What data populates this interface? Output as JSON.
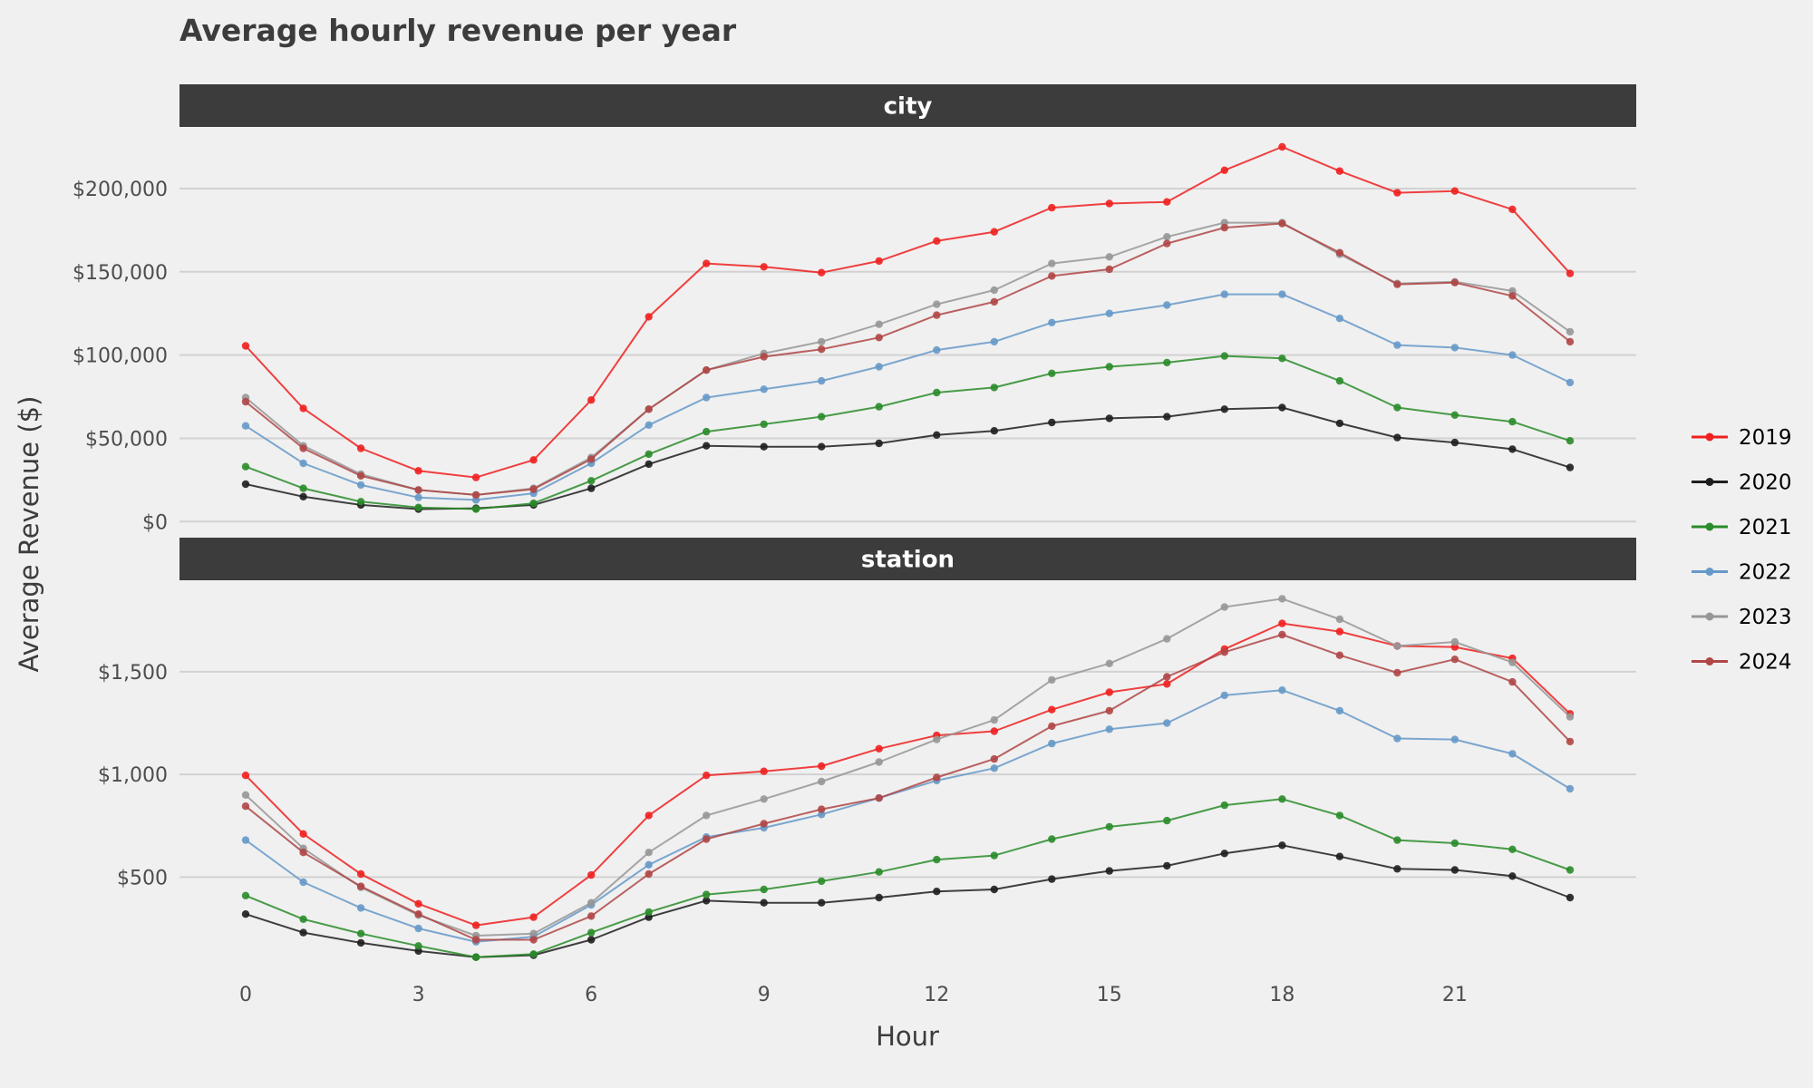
{
  "chart_data": {
    "type": "line",
    "title": "Average hourly revenue per year",
    "xlabel": "Hour",
    "ylabel": "Average Revenue ($)",
    "x": [
      0,
      1,
      2,
      3,
      4,
      5,
      6,
      7,
      8,
      9,
      10,
      11,
      12,
      13,
      14,
      15,
      16,
      17,
      18,
      19,
      20,
      21,
      22,
      23
    ],
    "x_ticks": [
      0,
      3,
      6,
      9,
      12,
      15,
      18,
      21
    ],
    "x_tick_labels": [
      "0",
      "3",
      "6",
      "9",
      "12",
      "15",
      "18",
      "21"
    ],
    "xlim": [
      -1.15,
      24.15
    ],
    "grid": true,
    "legend_position": "right",
    "series_names": [
      "2019",
      "2020",
      "2021",
      "2022",
      "2023",
      "2024"
    ],
    "colors": {
      "2019": "#ef2020",
      "2020": "#1e1e1e",
      "2021": "#2a8c2a",
      "2022": "#6699c8",
      "2023": "#979797",
      "2024": "#b04646"
    },
    "facets": [
      {
        "label": "city",
        "ylim": [
          -8000,
          237000
        ],
        "y_ticks": [
          0,
          50000,
          100000,
          150000,
          200000
        ],
        "y_tick_labels": [
          "$0",
          "$50,000",
          "$100,000",
          "$150,000",
          "$200,000"
        ],
        "series": [
          {
            "name": "2019",
            "values": [
              105500,
              68000,
              44000,
              30500,
              26500,
              37000,
              73000,
              123000,
              155000,
              153000,
              149500,
              156500,
              168500,
              174000,
              188500,
              191000,
              192000,
              211000,
              225000,
              210500,
              197500,
              198500,
              187500,
              149000
            ]
          },
          {
            "name": "2020",
            "values": [
              22500,
              15000,
              10000,
              7500,
              8000,
              10000,
              20000,
              34500,
              45500,
              45000,
              45000,
              47000,
              52000,
              54500,
              59500,
              62000,
              63000,
              67500,
              68500,
              59000,
              50500,
              47500,
              43500,
              32500
            ]
          },
          {
            "name": "2021",
            "values": [
              33000,
              20000,
              12000,
              8500,
              7500,
              11000,
              24500,
              40500,
              54000,
              58500,
              63000,
              69000,
              77500,
              80500,
              89000,
              93000,
              95500,
              99500,
              98000,
              84500,
              68500,
              64000,
              60000,
              48500
            ]
          },
          {
            "name": "2022",
            "values": [
              57500,
              35000,
              22000,
              14500,
              13000,
              17000,
              35000,
              58000,
              74500,
              79500,
              84500,
              93000,
              103000,
              108000,
              119500,
              125000,
              130000,
              136500,
              136500,
              122000,
              106000,
              104500,
              100000,
              83500
            ]
          },
          {
            "name": "2023",
            "values": [
              74500,
              45500,
              28500,
              19000,
              16000,
              20000,
              38500,
              67500,
              91000,
              101000,
              108000,
              118500,
              130500,
              139000,
              155000,
              159000,
              171000,
              179500,
              179500,
              160500,
              143000,
              144000,
              138500,
              114000
            ]
          },
          {
            "name": "2024",
            "values": [
              72000,
              44000,
              27500,
              19000,
              16000,
              19500,
              37500,
              67500,
              91000,
              99000,
              103500,
              110500,
              124000,
              132000,
              147500,
              151500,
              167000,
              176500,
              179000,
              161500,
              142500,
              143500,
              135500,
              108000
            ]
          }
        ]
      },
      {
        "label": "station",
        "ylim": [
          25,
          1945
        ],
        "y_ticks": [
          500,
          1000,
          1500
        ],
        "y_tick_labels": [
          "$500",
          "$1,000",
          "$1,500"
        ],
        "series": [
          {
            "name": "2019",
            "values": [
              995,
              710,
              515,
              370,
              265,
              305,
              510,
              800,
              995,
              1015,
              1040,
              1125,
              1190,
              1210,
              1315,
              1400,
              1440,
              1610,
              1735,
              1695,
              1625,
              1620,
              1565,
              1295
            ]
          },
          {
            "name": "2020",
            "values": [
              320,
              230,
              180,
              140,
              110,
              120,
              195,
              305,
              385,
              375,
              375,
              400,
              430,
              440,
              490,
              530,
              555,
              615,
              655,
              600,
              540,
              535,
              505,
              400
            ]
          },
          {
            "name": "2021",
            "values": [
              410,
              295,
              225,
              165,
              110,
              125,
              230,
              330,
              415,
              440,
              480,
              525,
              585,
              605,
              685,
              745,
              775,
              850,
              880,
              800,
              680,
              665,
              635,
              535
            ]
          },
          {
            "name": "2022",
            "values": [
              680,
              475,
              350,
              250,
              185,
              210,
              365,
              560,
              695,
              740,
              805,
              885,
              970,
              1030,
              1150,
              1220,
              1250,
              1385,
              1410,
              1310,
              1175,
              1170,
              1100,
              930
            ]
          },
          {
            "name": "2023",
            "values": [
              900,
              640,
              450,
              315,
              215,
              225,
              375,
              620,
              800,
              880,
              965,
              1060,
              1170,
              1265,
              1460,
              1540,
              1660,
              1815,
              1855,
              1755,
              1625,
              1645,
              1545,
              1280
            ]
          },
          {
            "name": "2024",
            "values": [
              845,
              620,
              455,
              320,
              195,
              195,
              310,
              515,
              685,
              760,
              830,
              885,
              985,
              1075,
              1235,
              1310,
              1475,
              1595,
              1680,
              1580,
              1495,
              1560,
              1450,
              1160
            ]
          }
        ]
      }
    ]
  }
}
